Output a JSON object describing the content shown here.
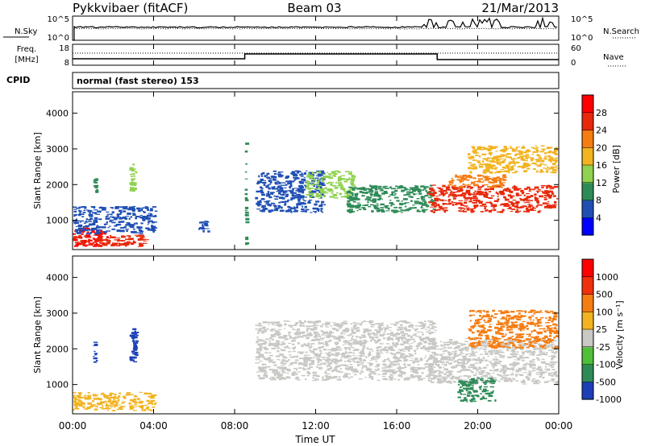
{
  "header": {
    "station": "Pykkvibaer (fitACF)",
    "beam": "Beam 03",
    "date": "21/Mar/2013"
  },
  "noise_panel": {
    "left_label": "N.Sky",
    "right_label": "N.Search",
    "left_ticks": [
      "10^5",
      "10^0"
    ],
    "right_ticks": [
      "10^5",
      "10^0"
    ]
  },
  "freq_panel": {
    "left_label_line1": "Freq.",
    "left_label_line2": "[MHz]",
    "right_label": "Nave",
    "left_ticks": [
      "18",
      "8"
    ],
    "right_ticks": [
      "60",
      "0"
    ]
  },
  "cpid": {
    "label": "CPID",
    "text": "normal (fast stereo) 153"
  },
  "chart_data": [
    {
      "type": "heatmap",
      "name": "power",
      "ylabel": "Slant Range [km]",
      "ylim": [
        180,
        4600
      ],
      "yticks": [
        "1000",
        "2000",
        "3000",
        "4000"
      ],
      "colorbar_label": "Power [dB]",
      "colorbar_ticks": [
        "4",
        "8",
        "12",
        "16",
        "20",
        "24",
        "28"
      ],
      "colorbar_colors": [
        "#0000ff",
        "#1f4fb4",
        "#2e8b57",
        "#8fd24f",
        "#f2b320",
        "#f57d12",
        "#e8280a",
        "#ff0000"
      ],
      "echo_regions": [
        {
          "t": [
            0.0,
            1.8
          ],
          "r": [
            250,
            800
          ],
          "level": 7
        },
        {
          "t": [
            0.0,
            3.8
          ],
          "r": [
            250,
            600
          ],
          "level": 6
        },
        {
          "t": [
            0.0,
            4.2
          ],
          "r": [
            600,
            1400
          ],
          "level": 1
        },
        {
          "t": [
            1.0,
            1.3
          ],
          "r": [
            1700,
            2200
          ],
          "level": 2
        },
        {
          "t": [
            2.8,
            3.2
          ],
          "r": [
            1700,
            2600
          ],
          "level": 3
        },
        {
          "t": [
            6.2,
            6.8
          ],
          "r": [
            600,
            1000
          ],
          "level": 1
        },
        {
          "t": [
            8.5,
            8.6
          ],
          "r": [
            300,
            3200
          ],
          "level": 2
        },
        {
          "t": [
            9.0,
            12.5
          ],
          "r": [
            1200,
            2400
          ],
          "level": 1
        },
        {
          "t": [
            11.5,
            14.0
          ],
          "r": [
            1600,
            2400
          ],
          "level": 3
        },
        {
          "t": [
            13.5,
            18.0
          ],
          "r": [
            1200,
            2000
          ],
          "level": 2
        },
        {
          "t": [
            17.5,
            24.0
          ],
          "r": [
            1200,
            2000
          ],
          "level": 6
        },
        {
          "t": [
            18.5,
            21.5
          ],
          "r": [
            1900,
            2300
          ],
          "level": 5
        },
        {
          "t": [
            19.5,
            24.0
          ],
          "r": [
            2300,
            3100
          ],
          "level": 4
        }
      ]
    },
    {
      "type": "heatmap",
      "name": "velocity",
      "ylabel": "Slant Range [km]",
      "ylim": [
        180,
        4600
      ],
      "yticks": [
        "1000",
        "2000",
        "3000",
        "4000"
      ],
      "colorbar_label": "Velocity [m s⁻¹]",
      "colorbar_ticks": [
        "1000",
        "500",
        "100",
        "25",
        "-25",
        "-100",
        "-500",
        "-1000"
      ],
      "colorbar_colors": [
        "#1c3fb8",
        "#2e8b57",
        "#4fbf3a",
        "#c8c8c4",
        "#f2b320",
        "#f57d12",
        "#f0300a",
        "#ff0000"
      ],
      "echo_regions": [
        {
          "t": [
            0.0,
            4.2
          ],
          "r": [
            250,
            800
          ],
          "level": 4
        },
        {
          "t": [
            1.0,
            1.3
          ],
          "r": [
            1600,
            2200
          ],
          "level": 0
        },
        {
          "t": [
            2.8,
            3.3
          ],
          "r": [
            1600,
            2600
          ],
          "level": 0
        },
        {
          "t": [
            9.0,
            18.0
          ],
          "r": [
            1100,
            2800
          ],
          "level": 3
        },
        {
          "t": [
            17.5,
            24.0
          ],
          "r": [
            1000,
            2300
          ],
          "level": 3
        },
        {
          "t": [
            19.0,
            21.0
          ],
          "r": [
            500,
            1200
          ],
          "level": 1
        },
        {
          "t": [
            19.5,
            24.0
          ],
          "r": [
            2000,
            3100
          ],
          "level": 5
        }
      ]
    }
  ],
  "x_axis": {
    "label": "Time UT",
    "ticks": [
      "00:00",
      "04:00",
      "08:00",
      "12:00",
      "16:00",
      "20:00",
      "00:00"
    ],
    "range_hours": [
      0,
      24
    ]
  }
}
